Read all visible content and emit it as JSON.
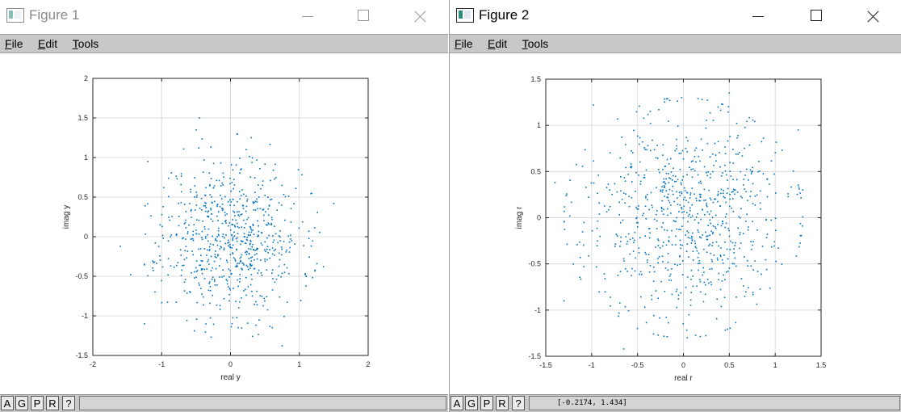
{
  "windows": [
    {
      "title": "Figure 1",
      "active": false,
      "menu": [
        "File",
        "Edit",
        "Tools"
      ],
      "toolbar": [
        "A",
        "G",
        "P",
        "R",
        "?"
      ],
      "status_text": "",
      "colors": {
        "accent": "#0072bd"
      }
    },
    {
      "title": "Figure 2",
      "active": true,
      "menu": [
        "File",
        "Edit",
        "Tools"
      ],
      "toolbar": [
        "A",
        "G",
        "P",
        "R",
        "?"
      ],
      "status_text": "[-0.2174, 1.434]",
      "colors": {
        "accent": "#0072bd"
      }
    }
  ],
  "chart_data": [
    {
      "type": "scatter",
      "xlabel": "real y",
      "ylabel": "imag y",
      "xlim": [
        -2,
        2
      ],
      "ylim": [
        -1.5,
        2
      ],
      "xticks": [
        "-2",
        "-1",
        "0",
        "1",
        "2"
      ],
      "yticks": [
        "-1.5",
        "-1",
        "-0.5",
        "0",
        "0.5",
        "1",
        "1.5",
        "2"
      ],
      "grid": true,
      "color": "#0072bd",
      "distribution": {
        "count": 700,
        "center": [
          0,
          0
        ],
        "spread": [
          0.5,
          0.5
        ],
        "seed": 11
      },
      "x": [
        -1.6,
        -1.45,
        -1.25,
        -1.2,
        1.5,
        1.35,
        -0.45,
        0.75,
        0.3,
        -0.5,
        1.1
      ],
      "y": [
        -0.12,
        -0.48,
        -1.1,
        0.95,
        0.42,
        -0.38,
        1.5,
        -1.38,
        1.25,
        1.35,
        -0.5
      ]
    },
    {
      "type": "scatter",
      "xlabel": "real r",
      "ylabel": "imag r",
      "xlim": [
        -1.5,
        1.5
      ],
      "ylim": [
        -1.5,
        1.5
      ],
      "xticks": [
        "-1.5",
        "-1",
        "-0.5",
        "0",
        "0.5",
        "1",
        "1.5"
      ],
      "yticks": [
        "-1.5",
        "-1",
        "-0.5",
        "0",
        "0.5",
        "1",
        "1.5"
      ],
      "grid": true,
      "color": "#0072bd",
      "distribution": {
        "count": 800,
        "center": [
          0,
          0
        ],
        "spread": [
          0.55,
          0.55
        ],
        "seed": 23
      },
      "x": [
        -1.4,
        -0.15,
        0.5,
        -1.3,
        1.25,
        -0.65,
        1.3,
        -0.98
      ],
      "y": [
        0.38,
        1.27,
        1.35,
        -0.9,
        0.95,
        -1.42,
        0.3,
        1.22
      ]
    }
  ]
}
